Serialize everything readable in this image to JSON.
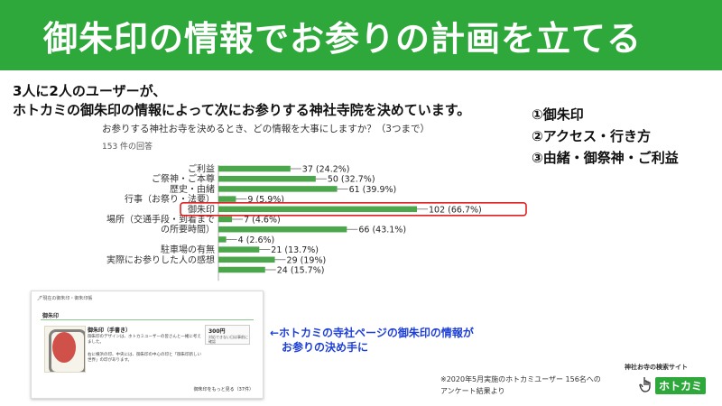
{
  "banner": {
    "title": "御朱印の情報でお参りの計画を立てる"
  },
  "lead": {
    "line1": "3人に2人のユーザーが、",
    "line2": "ホトカミの御朱印の情報によって次にお参りする神社寺院を決めています。"
  },
  "points": [
    "①御朱印",
    "②アクセス・行き方",
    "③由緒・御祭神・ご利益"
  ],
  "survey": {
    "question": "お参りする神社お寺を決めるとき、どの情報を大事にしますか？（3つまで）",
    "responses": "153 件の回答"
  },
  "chart_data": {
    "type": "bar",
    "orientation": "horizontal",
    "categories": [
      "ご利益",
      "ご祭神・ご本尊",
      "歴史・由緒",
      "行事（お祭り・法要）",
      "御朱印",
      "場所（交通手段・到着までの所要時間）",
      "",
      "",
      "駐車場の有無",
      "実際にお参りした人の感想",
      ""
    ],
    "values": [
      37,
      50,
      61,
      9,
      102,
      7,
      66,
      4,
      21,
      29,
      24
    ],
    "data_labels": [
      "37 (24.2%)",
      "50 (32.7%)",
      "61 (39.9%)",
      "9 (5.9%)",
      "102 (66.7%)",
      "7 (4.6%)",
      "66 (43.1%)",
      "4 (2.6%)",
      "21 (13.7%)",
      "29 (19%)",
      "24 (15.7%)"
    ],
    "highlight_index": 4,
    "color": "#4ca64c",
    "highlight_color": "#e02020",
    "category_label_lines": [
      [
        "ご利益"
      ],
      [
        "ご祭神・ご本尊"
      ],
      [
        "歴史・由緒"
      ],
      [
        "行事（お祭り・法要）"
      ],
      [
        "御朱印"
      ],
      [
        "場所（交通手段・到着まで"
      ],
      [
        "の所要時間）"
      ],
      [],
      [
        "駐車場の有無"
      ],
      [
        "実際にお参りした人の感想"
      ],
      []
    ],
    "xlim": [
      0,
      153
    ]
  },
  "card": {
    "crumb": "🖊現在の御朱印・御朱印帳",
    "heading": "御朱印",
    "subtitle": "御朱印（手書き）",
    "text1": "御朱印のデザインは、ホトカミユーザーの皆さんと一緒に考えました。",
    "text2": "右に横浜の印、中央には、御朱印の中心の印と「御朱印新しい世界」の印があります。",
    "price": "300円",
    "price_note": "対応できない日は事前に確認",
    "more": "御朱印をもっと見る（37件）"
  },
  "callout": {
    "line1": "←ホトカミの寺社ページの御朱印の情報が",
    "line2": "お参りの決め手に"
  },
  "footnote": {
    "line1": "※2020年5月実施のホトカミユーザー 156名への",
    "line2": "アンケート結果より"
  },
  "brand": {
    "caption": "神社お寺の検索サイト",
    "name": "ホトカミ"
  }
}
